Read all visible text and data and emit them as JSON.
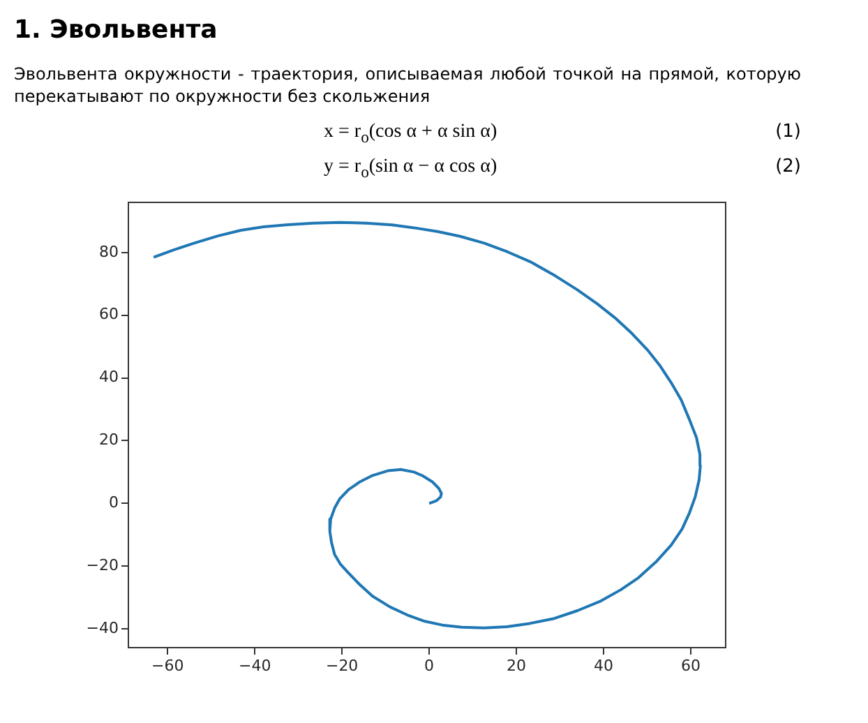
{
  "chart_data": {
    "type": "line",
    "title": "1. Эвольвента",
    "subtitle": "Эвольвента окружности - траектория, описываемая любой точкой на прямой, которую перекатывают по окружности без скольжения",
    "annotations": [
      "x = r$_{o}$(cos α + α sin α)",
      "(1)",
      "y = r$_{o}$(sin α − α cos α)",
      "(2)"
    ],
    "series": [
      {
        "color": "#1f77b4",
        "x": [
          0,
          1.6,
          2.6,
          2.8,
          2.2,
          0.8,
          -1.5,
          -3.5,
          -6.5,
          -9.5,
          -13,
          -16,
          -18.5,
          -20.5,
          -21.7,
          -22.6,
          -22.8,
          -22.4,
          -21.7,
          -20.3,
          -18.5,
          -16,
          -13,
          -9,
          -5,
          -1,
          3,
          7.5,
          12.6,
          17.9,
          23,
          28.7,
          34,
          39.4,
          44,
          48,
          52,
          55.5,
          58,
          59.7,
          61,
          61.9,
          62.2,
          62.1,
          61.3,
          59.7,
          57.8,
          55.5,
          53,
          50.1,
          46.5,
          42.6,
          38.5,
          34,
          29,
          23.3,
          18,
          12.6,
          7,
          1.9,
          -3.5,
          -8.5,
          -14.5,
          -20.6,
          -26.5,
          -32.4,
          -38,
          -43.2,
          -48.5,
          -53.9,
          -58.5,
          -63.2
        ],
        "values": [
          0,
          0.8,
          2,
          3.2,
          4.8,
          6.8,
          8.8,
          10,
          10.8,
          10.4,
          8.9,
          6.8,
          4.4,
          1.5,
          -1.5,
          -5,
          -8.9,
          -12.5,
          -16.3,
          -19.5,
          -22.2,
          -25.8,
          -29.6,
          -33,
          -35.6,
          -37.6,
          -38.8,
          -39.5,
          -39.7,
          -39.3,
          -38.3,
          -36.7,
          -34.2,
          -31.1,
          -27.5,
          -23.7,
          -18.7,
          -13.3,
          -8.2,
          -3,
          2,
          7.4,
          12,
          15.6,
          21,
          26.7,
          33,
          38.5,
          43.8,
          48.9,
          54.2,
          59.2,
          63.7,
          68.1,
          72.5,
          77,
          80.2,
          83,
          85.2,
          86.7,
          87.9,
          88.8,
          89.4,
          89.6,
          89.4,
          88.9,
          88.2,
          87.1,
          85.3,
          83,
          80.9,
          78.5
        ]
      }
    ],
    "xlim": [
      -69,
      68
    ],
    "ylim": [
      -46,
      96
    ],
    "xticks": [
      -60,
      -40,
      -20,
      0,
      20,
      40,
      60
    ],
    "yticks": [
      -40,
      -20,
      0,
      20,
      40,
      60,
      80
    ]
  }
}
